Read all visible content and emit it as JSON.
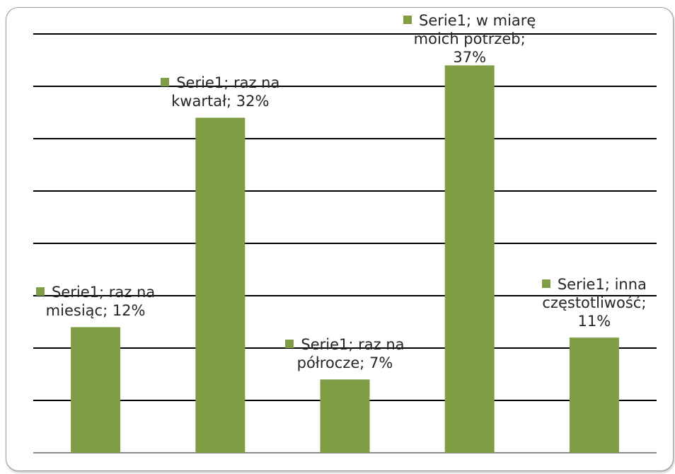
{
  "chart_data": {
    "type": "bar",
    "categories": [
      "raz na miesiąc",
      "raz na kwartał",
      "raz na półrocze",
      "w miarę moich potrzeb",
      "inna częstotliwość"
    ],
    "series": [
      {
        "name": "Serie1",
        "values": [
          12,
          32,
          7,
          37,
          11
        ]
      }
    ],
    "value_unit": "%",
    "ylim": [
      0,
      40
    ],
    "y_gridline_step": 5,
    "grid": true,
    "legend": "none",
    "bar_color": "#7f9d44",
    "gridline_color": "#000000",
    "data_labels": [
      {
        "lines": [
          "Serie1; raz na",
          "miesiąc; 12%"
        ]
      },
      {
        "lines": [
          "Serie1; raz na",
          "kwartał; 32%"
        ]
      },
      {
        "lines": [
          "Serie1; raz na",
          "półrocze; 7%"
        ]
      },
      {
        "lines": [
          "Serie1; w miarę",
          "moich potrzeb;",
          "37%"
        ]
      },
      {
        "lines": [
          "Serie1; inna",
          "częstotliwość;",
          "11%"
        ]
      }
    ]
  }
}
